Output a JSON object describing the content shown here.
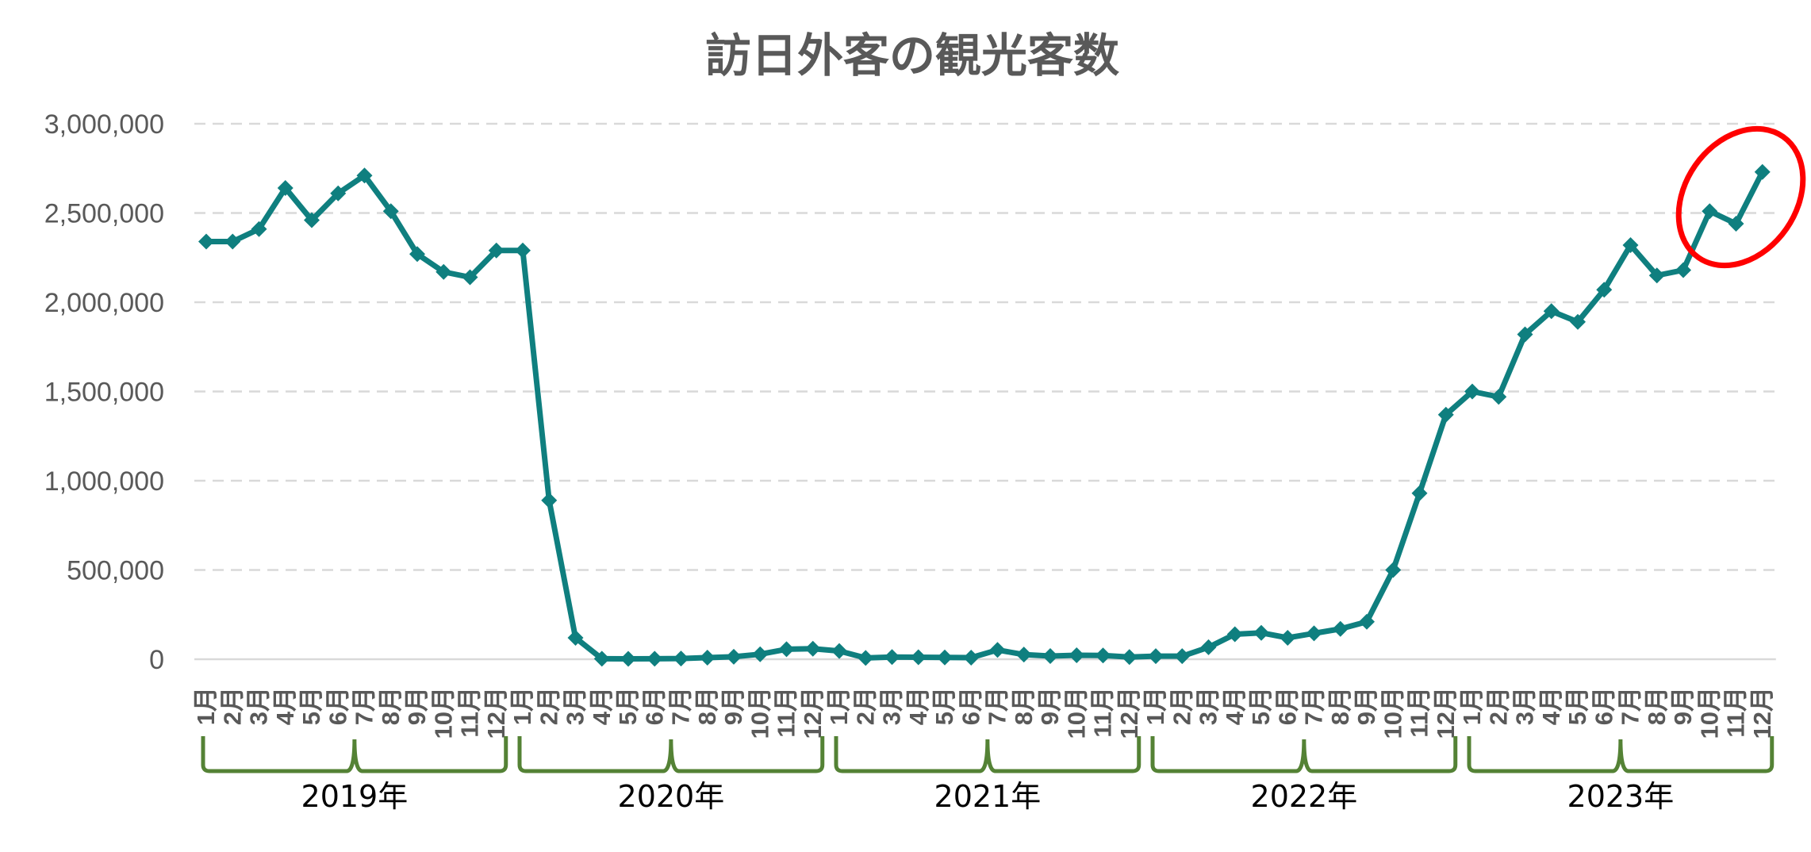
{
  "colors": {
    "line": "#0f7f7f",
    "grid": "#d9d9d9",
    "axis": "#d9d9d9",
    "bracket": "#548235",
    "highlight_ellipse": "#ff0000",
    "text": "#595959"
  },
  "chart_data": {
    "type": "line",
    "title": "訪日外客の観光客数",
    "marker": "diamond",
    "ylim": [
      0,
      3000000
    ],
    "y_ticks": [
      0,
      500000,
      1000000,
      1500000,
      2000000,
      2500000,
      3000000
    ],
    "y_tick_labels": [
      "0",
      "500,000",
      "1,000,000",
      "1,500,000",
      "2,000,000",
      "2,500,000",
      "3,000,000"
    ],
    "grid": "horizontal dashed",
    "legend": "none",
    "month_labels": [
      "1月",
      "2月",
      "3月",
      "4月",
      "5月",
      "6月",
      "7月",
      "8月",
      "9月",
      "10月",
      "11月",
      "12月"
    ],
    "groups": [
      {
        "label": "2019年",
        "values": [
          2340000,
          2340000,
          2410000,
          2640000,
          2460000,
          2610000,
          2710000,
          2510000,
          2270000,
          2170000,
          2140000,
          2290000
        ]
      },
      {
        "label": "2020年",
        "values": [
          2290000,
          890000,
          120000,
          3000,
          2000,
          3000,
          4000,
          9000,
          14000,
          28000,
          56000,
          59000
        ]
      },
      {
        "label": "2021年",
        "values": [
          46000,
          7000,
          12000,
          11000,
          10000,
          9000,
          52000,
          26000,
          18000,
          22000,
          21000,
          12000
        ]
      },
      {
        "label": "2022年",
        "values": [
          17000,
          17000,
          67000,
          140000,
          148000,
          120000,
          145000,
          170000,
          210000,
          500000,
          930000,
          1370000
        ]
      },
      {
        "label": "2023年",
        "values": [
          1500000,
          1470000,
          1820000,
          1950000,
          1890000,
          2070000,
          2320000,
          2150000,
          2180000,
          2510000,
          2440000,
          2730000
        ]
      }
    ],
    "annotations": [
      {
        "type": "red ellipse",
        "around": "2023年 10月–12月"
      }
    ]
  }
}
